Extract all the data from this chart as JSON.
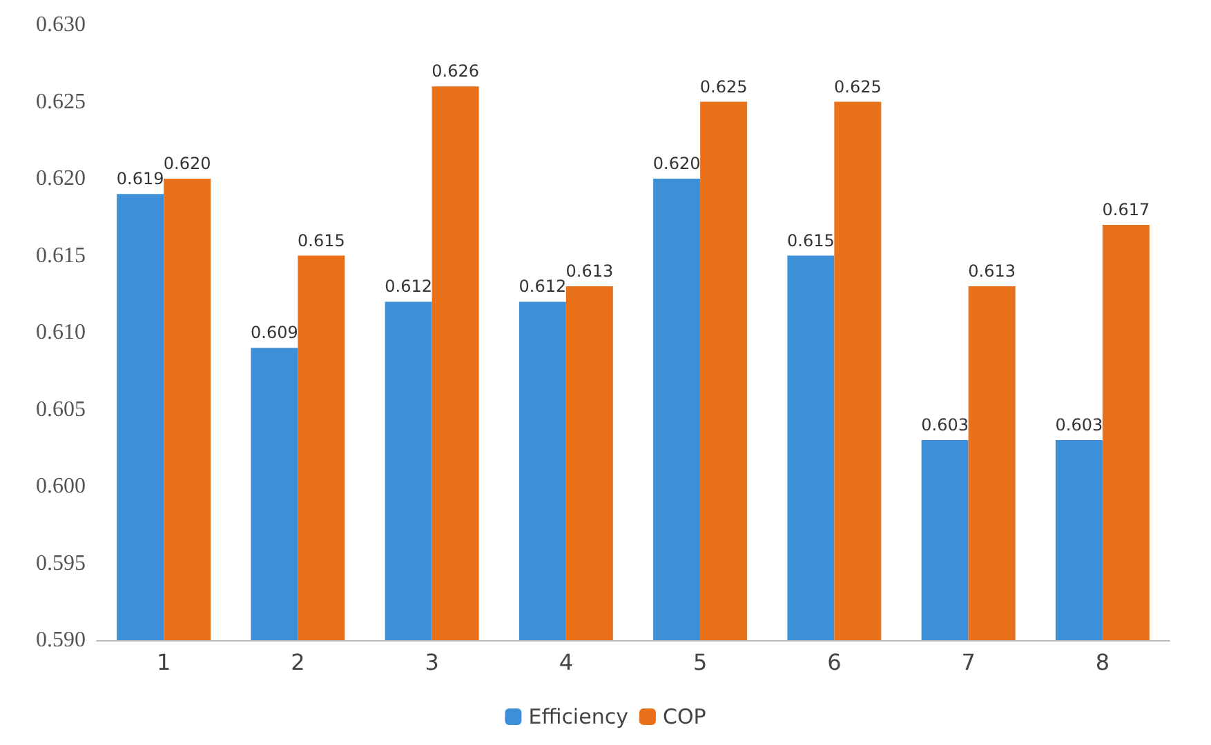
{
  "chart_data": {
    "type": "bar",
    "categories": [
      "1",
      "2",
      "3",
      "4",
      "5",
      "6",
      "7",
      "8"
    ],
    "series": [
      {
        "name": "Efficiency",
        "color": "#3d8fd8",
        "values": [
          0.619,
          0.609,
          0.612,
          0.612,
          0.62,
          0.615,
          0.603,
          0.603
        ],
        "value_labels": [
          "0.619",
          "0.609",
          "0.612",
          "0.612",
          "0.620",
          "0.615",
          "0.603",
          "0.603"
        ]
      },
      {
        "name": "COP",
        "color": "#e8711a",
        "values": [
          0.62,
          0.615,
          0.626,
          0.613,
          0.625,
          0.625,
          0.613,
          0.617
        ],
        "value_labels": [
          "0.620",
          "0.615",
          "0.626",
          "0.613",
          "0.625",
          "0.625",
          "0.613",
          "0.617"
        ]
      }
    ],
    "ylim": [
      0.59,
      0.63
    ],
    "yticks": [
      {
        "value": 0.59,
        "label": "0.590"
      },
      {
        "value": 0.595,
        "label": "0.595"
      },
      {
        "value": 0.6,
        "label": "0.600"
      },
      {
        "value": 0.605,
        "label": "0.605"
      },
      {
        "value": 0.61,
        "label": "0.610"
      },
      {
        "value": 0.615,
        "label": "0.615"
      },
      {
        "value": 0.62,
        "label": "0.620"
      },
      {
        "value": 0.625,
        "label": "0.625"
      },
      {
        "value": 0.63,
        "label": "0.630"
      }
    ],
    "grid": false,
    "legend": "bottom"
  }
}
